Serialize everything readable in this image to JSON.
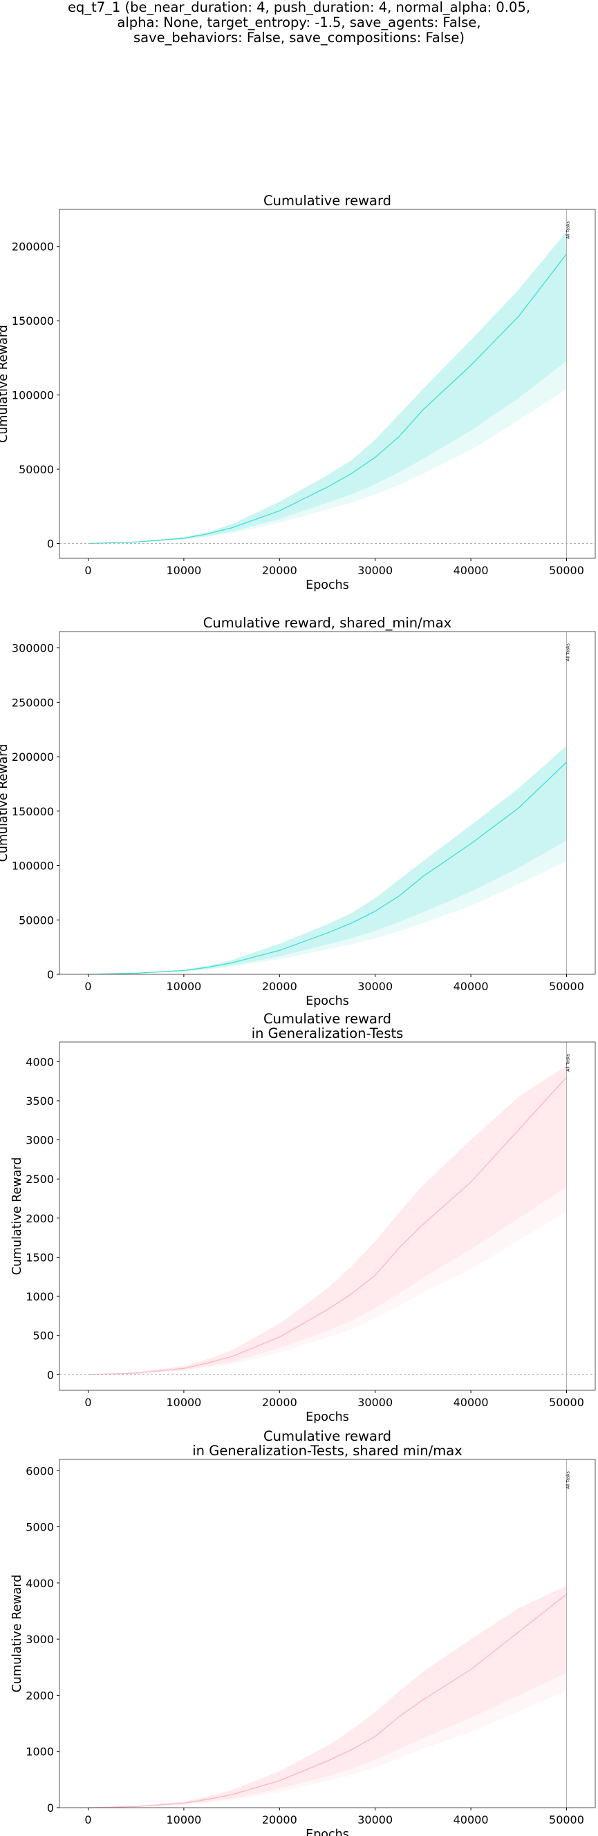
{
  "figure_title_lines": [
    "eq_t7_1 (be_near_duration: 4, push_duration: 4, normal_alpha: 0.05,",
    "alpha: None, target_entropy: -1.5, save_agents: False,",
    "save_behaviors: False, save_compositions: False)"
  ],
  "colors": {
    "reward": "#40e0d0",
    "generalization": "#ffb6c1",
    "vline": "#b0b0b0",
    "zero_line": "#b0b0b0"
  },
  "chart_data": [
    {
      "type": "line",
      "title": [
        "Cumulative reward"
      ],
      "xlabel": "Epochs",
      "ylabel": "Cumulative Reward",
      "xlim": [
        -3000,
        53000
      ],
      "ylim": [
        -10000,
        225000
      ],
      "xticks": [
        0,
        10000,
        20000,
        30000,
        40000,
        50000
      ],
      "yticks": [
        0,
        50000,
        100000,
        150000,
        200000
      ],
      "zero_line": true,
      "vline": {
        "x": 50000,
        "label": "All Tasks"
      },
      "series": [
        {
          "color": "reward",
          "x": [
            0,
            5000,
            10000,
            12500,
            15000,
            20000,
            25000,
            27500,
            30000,
            32500,
            35000,
            40000,
            45000,
            50000
          ],
          "mean": [
            0,
            1000,
            3500,
            6500,
            10500,
            22000,
            38000,
            47000,
            58000,
            72000,
            90000,
            120000,
            153000,
            195000
          ],
          "q_low": [
            0,
            800,
            2900,
            5000,
            8000,
            16500,
            27500,
            33000,
            40000,
            48000,
            57000,
            76000,
            98000,
            123000
          ],
          "q_high": [
            0,
            1300,
            4300,
            7600,
            13000,
            28000,
            46000,
            56000,
            70000,
            87000,
            104000,
            137000,
            171000,
            210000
          ],
          "min": [
            0,
            700,
            2500,
            4400,
            7000,
            14000,
            23000,
            27500,
            33000,
            39500,
            47000,
            63000,
            83000,
            104000
          ],
          "max": [
            0,
            1300,
            4300,
            7600,
            13000,
            28000,
            46000,
            56000,
            70000,
            87000,
            104000,
            137000,
            171000,
            210000
          ]
        }
      ]
    },
    {
      "type": "line",
      "title": [
        "Cumulative reward, shared_min/max"
      ],
      "xlabel": "Epochs",
      "ylabel": "Cumulative Reward",
      "xlim": [
        -3000,
        53000
      ],
      "ylim": [
        0,
        315000
      ],
      "xticks": [
        0,
        10000,
        20000,
        30000,
        40000,
        50000
      ],
      "yticks": [
        0,
        50000,
        100000,
        150000,
        200000,
        250000,
        300000
      ],
      "zero_line": false,
      "vline": {
        "x": 50000,
        "label": "All Tasks"
      },
      "series": [
        {
          "color": "reward",
          "x": [
            0,
            5000,
            10000,
            12500,
            15000,
            20000,
            25000,
            27500,
            30000,
            32500,
            35000,
            40000,
            45000,
            50000
          ],
          "mean": [
            0,
            1000,
            3500,
            6500,
            10500,
            22000,
            38000,
            47000,
            58000,
            72000,
            90000,
            120000,
            153000,
            195000
          ],
          "q_low": [
            0,
            800,
            2900,
            5000,
            8000,
            16500,
            27500,
            33000,
            40000,
            48000,
            57000,
            76000,
            98000,
            123000
          ],
          "q_high": [
            0,
            1300,
            4300,
            7600,
            13000,
            28000,
            46000,
            56000,
            70000,
            87000,
            104000,
            137000,
            171000,
            210000
          ],
          "min": [
            0,
            700,
            2500,
            4400,
            7000,
            14000,
            23000,
            27500,
            33000,
            39500,
            47000,
            63000,
            83000,
            104000
          ],
          "max": [
            0,
            1300,
            4300,
            7600,
            13000,
            28000,
            46000,
            56000,
            70000,
            87000,
            104000,
            137000,
            171000,
            210000
          ]
        }
      ]
    },
    {
      "type": "line",
      "title": [
        "Cumulative reward",
        "in Generalization-Tests"
      ],
      "xlabel": "Epochs",
      "ylabel": "Cumulative Reward",
      "xlim": [
        -3000,
        53000
      ],
      "ylim": [
        -200,
        4250
      ],
      "xticks": [
        0,
        10000,
        20000,
        30000,
        40000,
        50000
      ],
      "yticks": [
        0,
        500,
        1000,
        1500,
        2000,
        2500,
        3000,
        3500,
        4000
      ],
      "zero_line": true,
      "vline": {
        "x": 50000,
        "label": "All Tasks"
      },
      "series": [
        {
          "color": "generalization",
          "x": [
            0,
            5000,
            10000,
            12500,
            15000,
            20000,
            25000,
            27500,
            30000,
            32500,
            35000,
            40000,
            45000,
            50000
          ],
          "mean": [
            0,
            20,
            80,
            150,
            230,
            480,
            830,
            1030,
            1270,
            1620,
            1920,
            2460,
            3130,
            3800
          ],
          "q_low": [
            0,
            15,
            60,
            110,
            160,
            340,
            560,
            690,
            850,
            1040,
            1240,
            1600,
            2000,
            2400
          ],
          "q_high": [
            0,
            30,
            110,
            200,
            310,
            650,
            1100,
            1380,
            1700,
            2070,
            2420,
            3000,
            3550,
            3950
          ],
          "min": [
            0,
            10,
            50,
            90,
            130,
            280,
            480,
            580,
            720,
            880,
            1050,
            1350,
            1720,
            2080
          ],
          "max": [
            0,
            30,
            110,
            200,
            310,
            650,
            1100,
            1380,
            1700,
            2070,
            2420,
            3000,
            3550,
            3950
          ]
        }
      ]
    },
    {
      "type": "line",
      "title": [
        "Cumulative reward",
        "in Generalization-Tests, shared min/max"
      ],
      "xlabel": "Epochs",
      "ylabel": "Cumulative Reward",
      "xlim": [
        -3000,
        53000
      ],
      "ylim": [
        0,
        6200
      ],
      "xticks": [
        0,
        10000,
        20000,
        30000,
        40000,
        50000
      ],
      "yticks": [
        0,
        1000,
        2000,
        3000,
        4000,
        5000,
        6000
      ],
      "zero_line": false,
      "vline": {
        "x": 50000,
        "label": "All Tasks"
      },
      "series": [
        {
          "color": "generalization",
          "x": [
            0,
            5000,
            10000,
            12500,
            15000,
            20000,
            25000,
            27500,
            30000,
            32500,
            35000,
            40000,
            45000,
            50000
          ],
          "mean": [
            0,
            20,
            80,
            150,
            230,
            480,
            830,
            1030,
            1270,
            1620,
            1920,
            2460,
            3130,
            3800
          ],
          "q_low": [
            0,
            15,
            60,
            110,
            160,
            340,
            560,
            690,
            850,
            1040,
            1240,
            1600,
            2000,
            2400
          ],
          "q_high": [
            0,
            30,
            110,
            200,
            310,
            650,
            1100,
            1380,
            1700,
            2070,
            2420,
            3000,
            3550,
            3950
          ],
          "min": [
            0,
            10,
            50,
            90,
            130,
            280,
            480,
            580,
            720,
            880,
            1050,
            1350,
            1720,
            2080
          ],
          "max": [
            0,
            30,
            110,
            200,
            310,
            650,
            1100,
            1380,
            1700,
            2070,
            2420,
            3000,
            3550,
            3950
          ]
        }
      ]
    }
  ]
}
